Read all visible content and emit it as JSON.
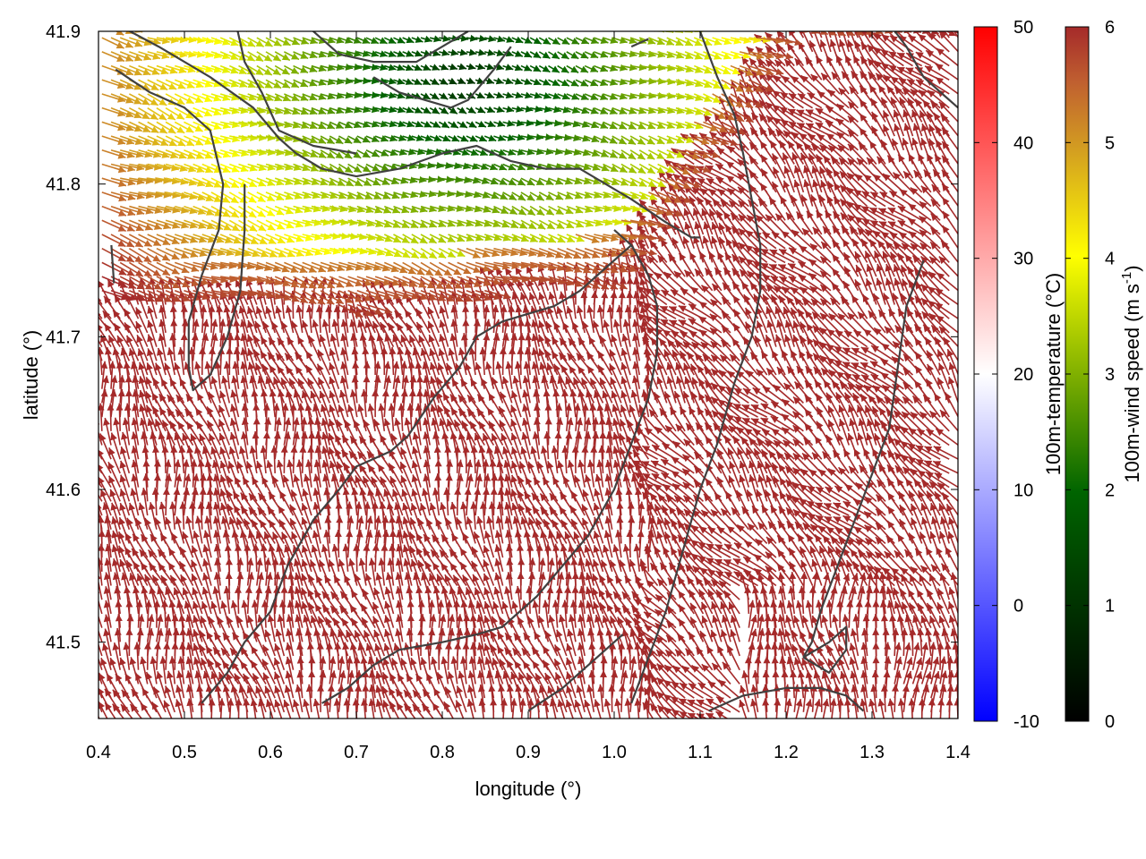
{
  "chart_data": {
    "type": "vector_field",
    "xlabel": "longitude (°)",
    "ylabel": "latitude (°)",
    "xlim": [
      0.4,
      1.4
    ],
    "ylim": [
      41.45,
      41.9
    ],
    "x_ticks": [
      "0.4",
      "0.5",
      "0.6",
      "0.7",
      "0.8",
      "0.9",
      "1.0",
      "1.1",
      "1.2",
      "1.3",
      "1.4"
    ],
    "y_ticks": [
      "41.5",
      "41.6",
      "41.7",
      "41.8",
      "41.9"
    ],
    "x_tick_values": [
      0.4,
      0.5,
      0.6,
      0.7,
      0.8,
      0.9,
      1.0,
      1.1,
      1.2,
      1.3,
      1.4
    ],
    "y_tick_values": [
      41.5,
      41.6,
      41.7,
      41.8,
      41.9
    ],
    "grid": false,
    "colorbars": [
      {
        "label": "100m-temperature (°C)",
        "range": [
          -10,
          50
        ],
        "ticks": [
          "-10",
          "0",
          "10",
          "20",
          "30",
          "40",
          "50"
        ],
        "tick_values": [
          -10,
          0,
          10,
          20,
          30,
          40,
          50
        ],
        "colors": [
          "#0000ff",
          "#ffffff",
          "#ff0000"
        ]
      },
      {
        "label_main": "100m-wind speed (m s",
        "label_sup": "-1",
        "label_end": ")",
        "range": [
          0,
          6
        ],
        "ticks": [
          "0",
          "1",
          "2",
          "3",
          "4",
          "5",
          "6"
        ],
        "tick_values": [
          0,
          1,
          2,
          3,
          4,
          5,
          6
        ],
        "colors": [
          "#000000",
          "#006400",
          "#80b000",
          "#ffff00",
          "#d4a020",
          "#c06030",
          "#a52a2a"
        ]
      }
    ],
    "vector_color": "#a52a2a",
    "contour_color": "#404040",
    "contours": [
      [
        [
          0.415,
          41.76
        ],
        [
          0.418,
          41.735
        ]
      ],
      [
        [
          0.42,
          41.875
        ],
        [
          0.46,
          41.86
        ],
        [
          0.5,
          41.85
        ],
        [
          0.53,
          41.835
        ],
        [
          0.545,
          41.8
        ],
        [
          0.54,
          41.77
        ],
        [
          0.52,
          41.74
        ],
        [
          0.505,
          41.71
        ],
        [
          0.505,
          41.68
        ],
        [
          0.51,
          41.665
        ],
        [
          0.53,
          41.675
        ],
        [
          0.55,
          41.7
        ],
        [
          0.565,
          41.73
        ],
        [
          0.57,
          41.77
        ],
        [
          0.57,
          41.8
        ]
      ],
      [
        [
          0.42,
          41.905
        ],
        [
          0.47,
          41.89
        ],
        [
          0.53,
          41.87
        ],
        [
          0.58,
          41.85
        ],
        [
          0.61,
          41.83
        ],
        [
          0.63,
          41.82
        ],
        [
          0.66,
          41.81
        ],
        [
          0.7,
          41.805
        ],
        [
          0.75,
          41.81
        ],
        [
          0.8,
          41.82
        ],
        [
          0.84,
          41.825
        ],
        [
          0.88,
          41.815
        ],
        [
          0.92,
          41.81
        ],
        [
          0.96,
          41.81
        ],
        [
          1.02,
          41.79
        ],
        [
          1.06,
          41.775
        ],
        [
          1.09,
          41.765
        ],
        [
          1.1,
          41.765
        ]
      ],
      [
        [
          0.64,
          41.905
        ],
        [
          0.68,
          41.885
        ],
        [
          0.72,
          41.88
        ],
        [
          0.77,
          41.88
        ],
        [
          0.8,
          41.89
        ],
        [
          0.83,
          41.9
        ]
      ],
      [
        [
          0.72,
          41.87
        ],
        [
          0.75,
          41.86
        ],
        [
          0.78,
          41.855
        ],
        [
          0.81,
          41.85
        ],
        [
          0.83,
          41.855
        ],
        [
          0.86,
          41.875
        ],
        [
          0.88,
          41.89
        ]
      ],
      [
        [
          0.56,
          41.905
        ],
        [
          0.57,
          41.88
        ],
        [
          0.59,
          41.86
        ],
        [
          0.61,
          41.835
        ],
        [
          0.65,
          41.825
        ],
        [
          0.7,
          41.82
        ]
      ],
      [
        [
          1.0,
          41.77
        ],
        [
          1.02,
          41.76
        ],
        [
          1.04,
          41.74
        ],
        [
          1.05,
          41.72
        ],
        [
          1.05,
          41.69
        ],
        [
          1.04,
          41.66
        ],
        [
          1.02,
          41.63
        ],
        [
          1.0,
          41.6
        ],
        [
          0.97,
          41.57
        ],
        [
          0.94,
          41.55
        ],
        [
          0.91,
          41.53
        ],
        [
          0.87,
          41.51
        ],
        [
          0.84,
          41.505
        ],
        [
          0.8,
          41.5
        ],
        [
          0.75,
          41.495
        ],
        [
          0.72,
          41.485
        ],
        [
          0.69,
          41.47
        ],
        [
          0.66,
          41.46
        ]
      ],
      [
        [
          0.52,
          41.46
        ],
        [
          0.55,
          41.48
        ],
        [
          0.57,
          41.5
        ],
        [
          0.6,
          41.52
        ],
        [
          0.62,
          41.55
        ],
        [
          0.65,
          41.58
        ],
        [
          0.68,
          41.6
        ],
        [
          0.7,
          41.615
        ],
        [
          0.72,
          41.62
        ],
        [
          0.74,
          41.625
        ],
        [
          0.76,
          41.635
        ],
        [
          0.79,
          41.66
        ],
        [
          0.82,
          41.68
        ],
        [
          0.84,
          41.7
        ],
        [
          0.87,
          41.71
        ],
        [
          0.9,
          41.715
        ],
        [
          0.93,
          41.72
        ],
        [
          0.96,
          41.73
        ],
        [
          0.99,
          41.745
        ],
        [
          1.02,
          41.76
        ]
      ],
      [
        [
          1.1,
          41.9
        ],
        [
          1.12,
          41.87
        ],
        [
          1.14,
          41.845
        ],
        [
          1.15,
          41.82
        ],
        [
          1.16,
          41.79
        ],
        [
          1.17,
          41.76
        ],
        [
          1.17,
          41.73
        ],
        [
          1.16,
          41.7
        ],
        [
          1.14,
          41.67
        ],
        [
          1.12,
          41.63
        ],
        [
          1.1,
          41.6
        ],
        [
          1.08,
          41.56
        ],
        [
          1.06,
          41.52
        ],
        [
          1.04,
          41.49
        ],
        [
          1.02,
          41.46
        ]
      ],
      [
        [
          1.32,
          41.905
        ],
        [
          1.34,
          41.89
        ],
        [
          1.36,
          41.87
        ],
        [
          1.38,
          41.86
        ],
        [
          1.4,
          41.85
        ]
      ],
      [
        [
          1.36,
          41.75
        ],
        [
          1.34,
          41.72
        ],
        [
          1.33,
          41.68
        ],
        [
          1.32,
          41.64
        ],
        [
          1.3,
          41.61
        ],
        [
          1.28,
          41.58
        ],
        [
          1.26,
          41.55
        ],
        [
          1.24,
          41.52
        ],
        [
          1.23,
          41.5
        ],
        [
          1.22,
          41.49
        ]
      ],
      [
        [
          1.22,
          41.49
        ],
        [
          1.25,
          41.5
        ],
        [
          1.27,
          41.51
        ],
        [
          1.27,
          41.495
        ],
        [
          1.25,
          41.48
        ],
        [
          1.22,
          41.49
        ]
      ],
      [
        [
          1.11,
          41.455
        ],
        [
          1.15,
          41.465
        ],
        [
          1.2,
          41.47
        ],
        [
          1.24,
          41.47
        ],
        [
          1.27,
          41.465
        ],
        [
          1.29,
          41.455
        ]
      ],
      [
        [
          0.9,
          41.455
        ],
        [
          0.94,
          41.47
        ],
        [
          0.98,
          41.49
        ],
        [
          1.01,
          41.505
        ]
      ],
      [
        [
          1.02,
          41.89
        ],
        [
          1.04,
          41.895
        ]
      ]
    ],
    "wind_field": {
      "description": "NE sector weak winds (0-3 m/s) backed southeastward; southern sector strong winds (≥6 m/s) blowing northward / northwestward",
      "calm_center": [
        0.82,
        41.87
      ],
      "calm_center_speed": 1.0,
      "transition_line": [
        [
          0.4,
          41.73
        ],
        [
          0.7,
          41.72
        ],
        [
          1.0,
          41.74
        ],
        [
          1.2,
          41.9
        ]
      ],
      "max_speed": 6
    }
  }
}
